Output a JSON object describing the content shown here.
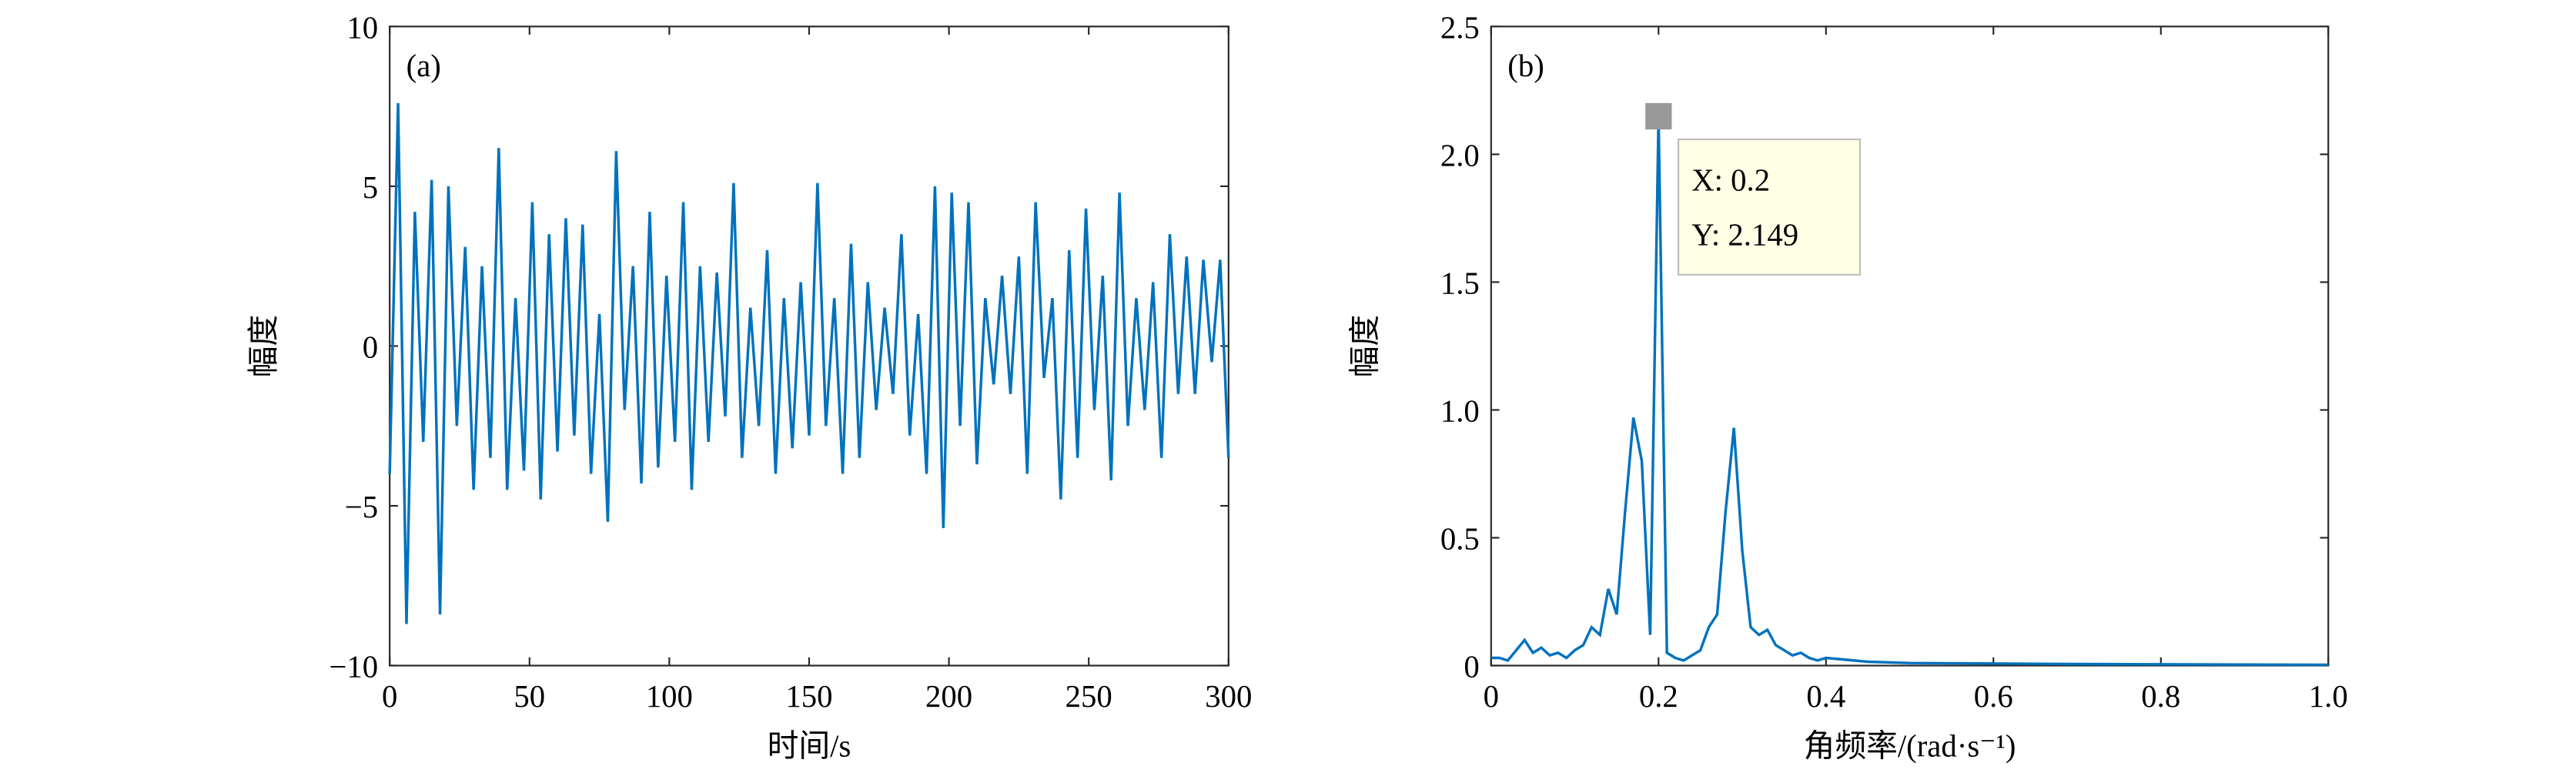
{
  "chart_data": [
    {
      "type": "line",
      "panel_label": "(a)",
      "xlabel": "时间/s",
      "ylabel": "幅度",
      "xlim": [
        0,
        300
      ],
      "ylim": [
        -10,
        10
      ],
      "xticks": [
        0,
        50,
        100,
        150,
        200,
        250,
        300
      ],
      "yticks": [
        {
          "value": -10,
          "label": "−10"
        },
        {
          "value": -5,
          "label": "−5"
        },
        0,
        5,
        10
      ],
      "x": [
        0,
        3,
        6,
        9,
        12,
        15,
        18,
        21,
        24,
        27,
        30,
        33,
        36,
        39,
        42,
        45,
        48,
        51,
        54,
        57,
        60,
        63,
        66,
        69,
        72,
        75,
        78,
        81,
        84,
        87,
        90,
        93,
        96,
        99,
        102,
        105,
        108,
        111,
        114,
        117,
        120,
        123,
        126,
        129,
        132,
        135,
        138,
        141,
        144,
        147,
        150,
        153,
        156,
        159,
        162,
        165,
        168,
        171,
        174,
        177,
        180,
        183,
        186,
        189,
        192,
        195,
        198,
        201,
        204,
        207,
        210,
        213,
        216,
        219,
        222,
        225,
        228,
        231,
        234,
        237,
        240,
        243,
        246,
        249,
        252,
        255,
        258,
        261,
        264,
        267,
        270,
        273,
        276,
        279,
        282,
        285,
        288,
        291,
        294,
        297,
        300
      ],
      "series": [
        {
          "color": "#0072bd",
          "values": [
            -4,
            7.6,
            -8.7,
            4.2,
            -3,
            5.2,
            -8.4,
            5.0,
            -2.5,
            3.1,
            -4.5,
            2.5,
            -3.5,
            6.2,
            -4.5,
            1.5,
            -3.9,
            4.5,
            -4.8,
            3.5,
            -3.3,
            4.0,
            -2.8,
            3.8,
            -4.0,
            1.0,
            -5.5,
            6.1,
            -2.0,
            2.5,
            -4.3,
            4.2,
            -3.8,
            2.2,
            -3.0,
            4.5,
            -4.5,
            2.5,
            -3.0,
            2.3,
            -2.2,
            5.1,
            -3.5,
            1.2,
            -2.5,
            3.0,
            -4.0,
            1.5,
            -3.2,
            2.0,
            -2.8,
            5.1,
            -2.5,
            1.5,
            -4.0,
            3.2,
            -3.5,
            2.0,
            -2.0,
            1.2,
            -1.5,
            3.5,
            -2.8,
            1.0,
            -4.0,
            5.0,
            -5.7,
            4.8,
            -2.5,
            4.5,
            -3.7,
            1.5,
            -1.2,
            2.2,
            -1.5,
            2.8,
            -4.0,
            4.5,
            -1.0,
            1.5,
            -4.8,
            3.0,
            -3.5,
            4.3,
            -2.0,
            2.2,
            -4.2,
            4.8,
            -2.5,
            1.5,
            -2.0,
            2.0,
            -3.5,
            3.5,
            -1.5,
            2.8,
            -1.5,
            2.7,
            -0.5,
            2.7,
            -3.5
          ]
        }
      ]
    },
    {
      "type": "line",
      "panel_label": "(b)",
      "xlabel": "角频率/(rad·s⁻¹)",
      "ylabel": "幅度",
      "xlim": [
        0,
        1
      ],
      "ylim": [
        0,
        2.5
      ],
      "xticks": [
        0,
        0.2,
        0.4,
        0.6,
        0.8,
        {
          "value": 1,
          "label": "1.0"
        }
      ],
      "yticks": [
        0,
        0.5,
        {
          "value": 1,
          "label": "1.0"
        },
        1.5,
        {
          "value": 2,
          "label": "2.0"
        },
        2.5
      ],
      "x": [
        0,
        0.01,
        0.02,
        0.03,
        0.04,
        0.05,
        0.06,
        0.07,
        0.08,
        0.09,
        0.1,
        0.11,
        0.12,
        0.13,
        0.14,
        0.15,
        0.16,
        0.17,
        0.18,
        0.19,
        0.2,
        0.21,
        0.22,
        0.23,
        0.24,
        0.25,
        0.26,
        0.27,
        0.28,
        0.29,
        0.3,
        0.31,
        0.32,
        0.33,
        0.34,
        0.35,
        0.36,
        0.37,
        0.38,
        0.39,
        0.4,
        0.45,
        0.5,
        0.6,
        0.7,
        0.8,
        0.9,
        1
      ],
      "series": [
        {
          "color": "#0072bd",
          "values": [
            0.03,
            0.03,
            0.02,
            0.06,
            0.1,
            0.05,
            0.07,
            0.04,
            0.05,
            0.03,
            0.06,
            0.08,
            0.15,
            0.12,
            0.3,
            0.2,
            0.6,
            0.97,
            0.8,
            0.12,
            2.149,
            0.05,
            0.03,
            0.02,
            0.04,
            0.06,
            0.15,
            0.2,
            0.6,
            0.93,
            0.45,
            0.15,
            0.12,
            0.14,
            0.08,
            0.06,
            0.04,
            0.05,
            0.03,
            0.02,
            0.03,
            0.015,
            0.01,
            0.008,
            0.006,
            0.005,
            0.004,
            0.003
          ]
        }
      ],
      "annotation": {
        "x": 0.2,
        "y": 2.149,
        "lines": [
          "X: 0.2",
          "Y: 2.149"
        ]
      }
    }
  ]
}
